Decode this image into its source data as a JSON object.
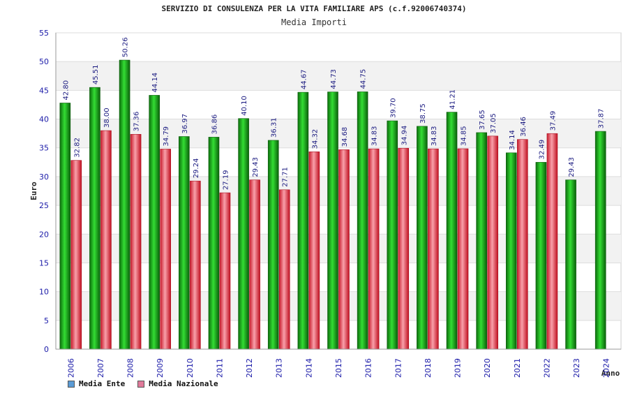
{
  "chart_data": {
    "type": "bar",
    "title": "SERVIZIO DI CONSULENZA PER LA VITA FAMILIARE APS (c.f.92006740374)",
    "subtitle": "Media Importi",
    "xlabel": "Anno",
    "ylabel": "Euro",
    "ylim": [
      0,
      55
    ],
    "yticks": [
      0,
      5,
      10,
      15,
      20,
      25,
      30,
      35,
      40,
      45,
      50,
      55
    ],
    "categories": [
      "2006",
      "2007",
      "2008",
      "2009",
      "2010",
      "2011",
      "2012",
      "2013",
      "2014",
      "2015",
      "2016",
      "2017",
      "2018",
      "2019",
      "2020",
      "2021",
      "2022",
      "2023",
      "2024"
    ],
    "series": [
      {
        "name": "Media Ente",
        "color": "#22aa22",
        "values": [
          42.8,
          45.51,
          50.26,
          44.14,
          36.97,
          36.86,
          40.1,
          36.31,
          44.67,
          44.73,
          44.75,
          39.7,
          38.75,
          41.21,
          37.65,
          34.14,
          32.49,
          29.43,
          37.87
        ],
        "labels": [
          "42.80",
          "45.51",
          "50.26",
          "44.14",
          "36.97",
          "36.86",
          "40.10",
          "36.31",
          "44.67",
          "44.73",
          "44.75",
          "39.70",
          "38.75",
          "41.21",
          "37.65",
          "34.14",
          "32.49",
          "29.43",
          "37.87"
        ]
      },
      {
        "name": "Media Nazionale",
        "color": "#e83a4a",
        "values": [
          32.82,
          38.0,
          37.36,
          34.79,
          29.24,
          27.19,
          29.43,
          27.71,
          34.32,
          34.68,
          34.83,
          34.94,
          34.83,
          34.85,
          37.05,
          36.46,
          37.49,
          null,
          null
        ],
        "labels": [
          "32.82",
          "38.00",
          "37.36",
          "34.79",
          "29.24",
          "27.19",
          "29.43",
          "27.71",
          "34.32",
          "34.68",
          "34.83",
          "34.94",
          "34.83",
          "34.85",
          "37.05",
          "36.46",
          "37.49",
          null,
          null
        ]
      }
    ],
    "legend": [
      {
        "name": "Media Ente",
        "swatch_color": "#5b9bd5"
      },
      {
        "name": "Media Nazionale",
        "swatch_color": "#e07a9a"
      }
    ],
    "grid": true,
    "legend_position": "bottom-left"
  }
}
